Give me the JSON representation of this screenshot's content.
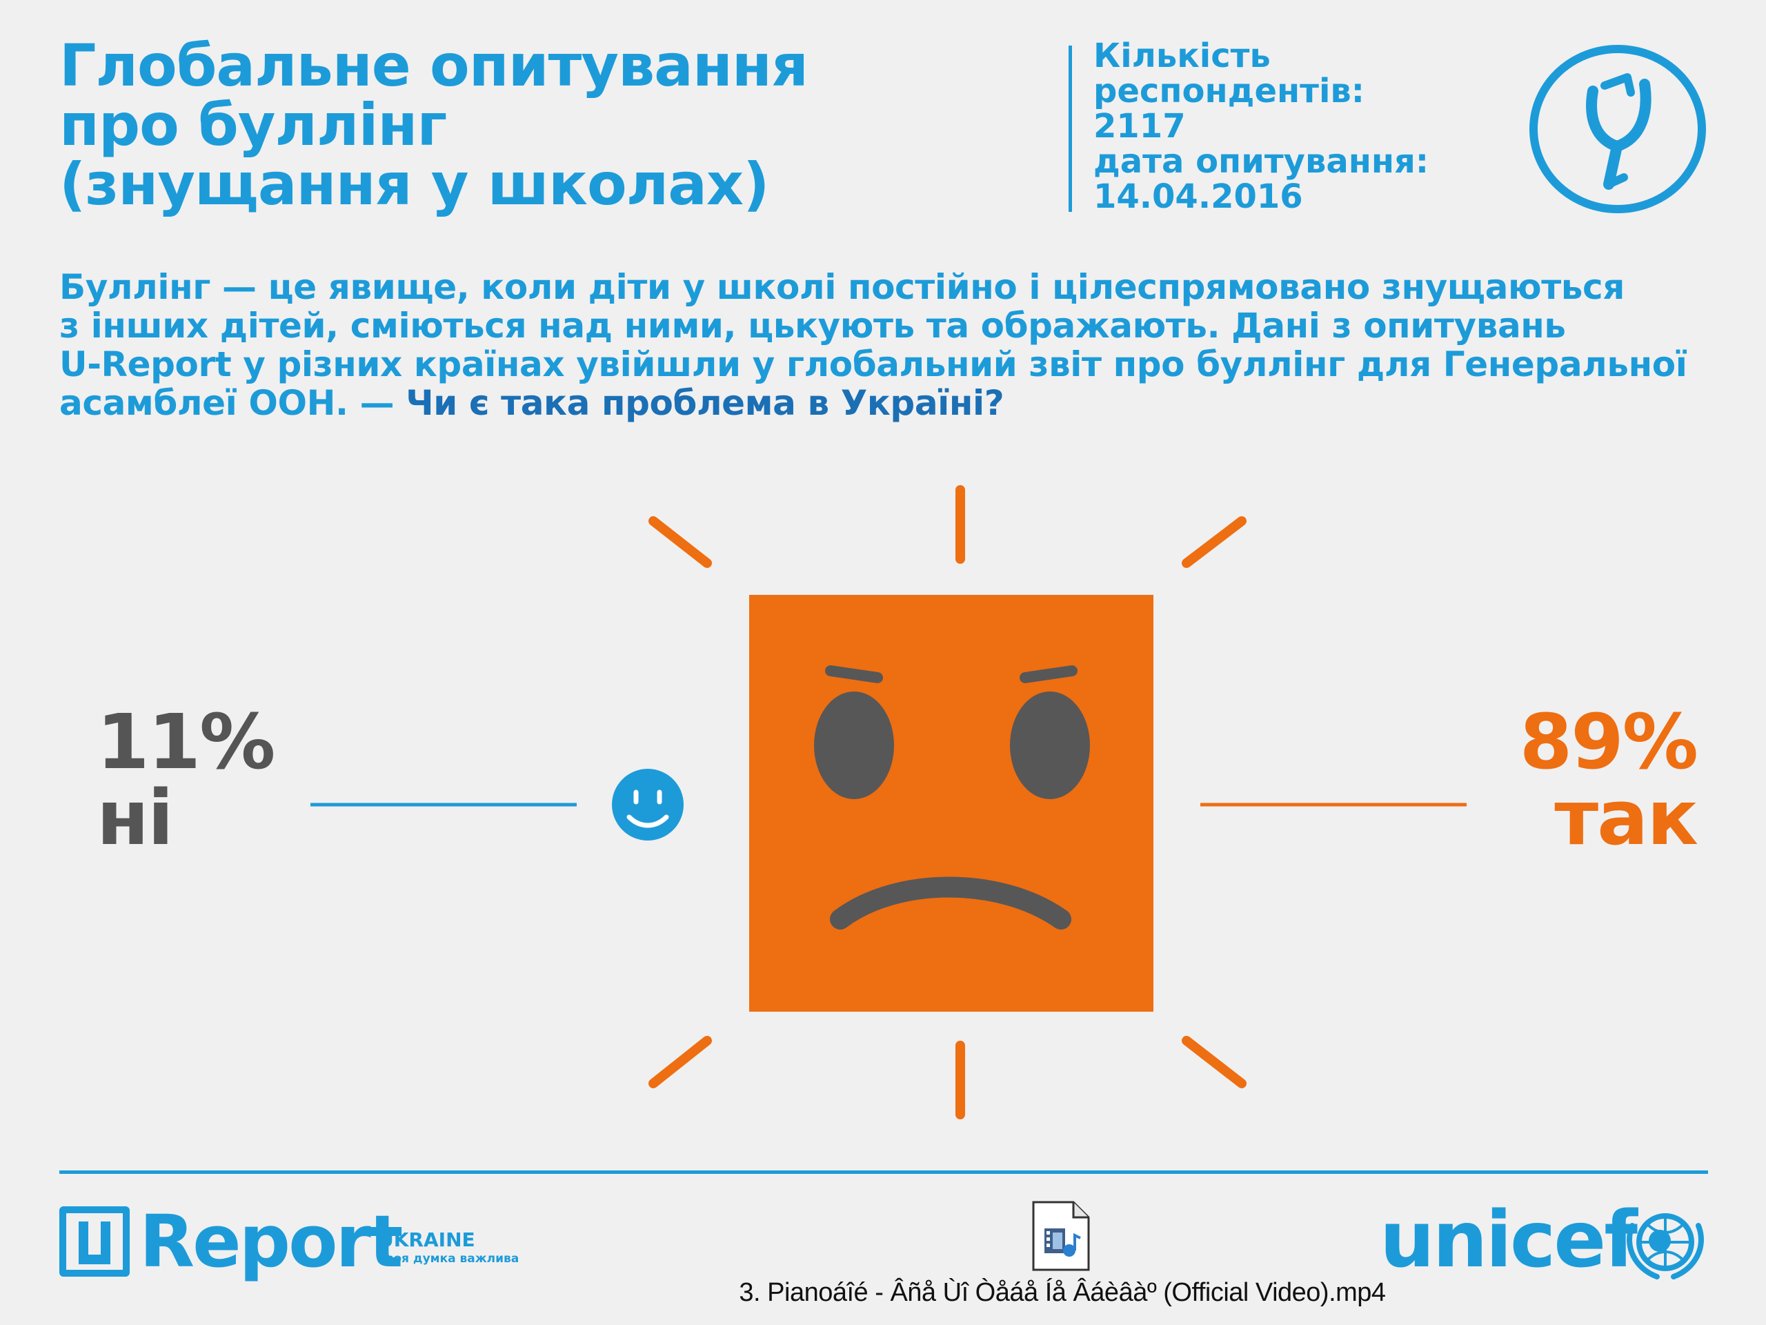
{
  "title": {
    "line1": "Глобальне опитування",
    "line2": "про буллінг",
    "line3": "(знущання у школах)"
  },
  "meta": {
    "respondents_label_1": "Кількість",
    "respondents_label_2": "респондентів:",
    "respondents_value": "2117",
    "date_label": "дата опитування:",
    "date_value": "14.04.2016"
  },
  "intro": {
    "line1": "Буллінг — це явище, коли діти у школі постійно і цілеспрямовано знущаються",
    "line2": "з інших дітей, сміються над ними, цькують та ображають. Дані з опитувань",
    "line3": "U-Report у різних країнах увійшли у глобальний звіт про буллінг для Генеральної",
    "line4": "асамблеї ООН. — ",
    "question": "Чи є така проблема в Україні?"
  },
  "results": {
    "no_percent": "11%",
    "no_label": "ні",
    "yes_percent": "89%",
    "yes_label": "так",
    "no_value": 11,
    "yes_value": 89
  },
  "footer": {
    "ureport_word": "Report",
    "ureport_country": "UKRAINE",
    "ureport_tagline": "Твоя думка важлива",
    "file_name": "3. Pianoáîé - Âñå Ùî Òåáå Íå Âáèâàº (Official Video).mp4",
    "unicef_word": "unicef"
  },
  "colors": {
    "blue": "#1d9bd9",
    "orange": "#ee6e12",
    "gray": "#555555",
    "face_features": "#575757",
    "background": "#f0f0f0"
  },
  "icons": {
    "brand_logo": "ureport-slingshot-logo-icon",
    "angry_face": "angry-face-icon",
    "happy_face": "smiley-face-icon",
    "video_file": "video-file-icon",
    "un_emblem": "unicef-emblem-icon"
  }
}
